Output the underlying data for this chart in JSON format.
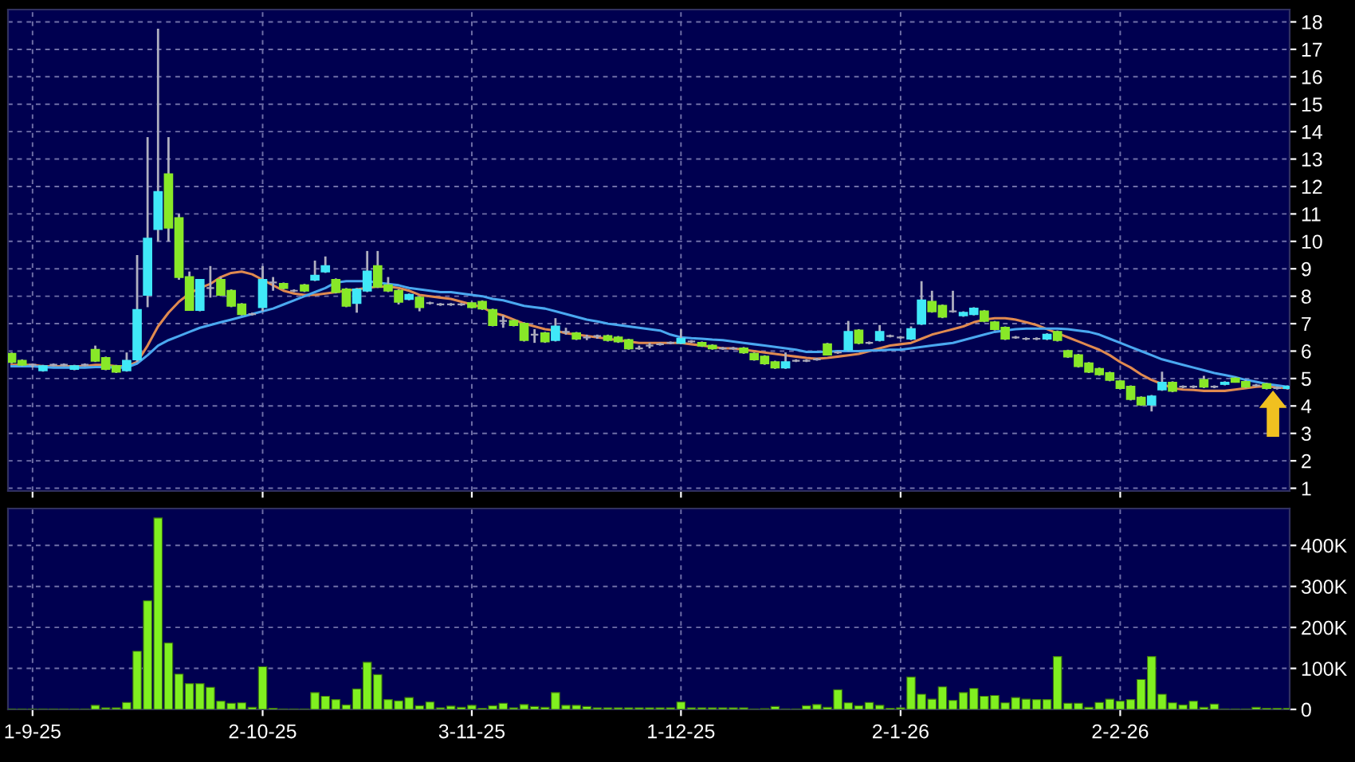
{
  "chart_data": [
    {
      "type": "candlestick",
      "ohlc": [
        [
          5.9,
          5.95,
          5.55,
          5.6
        ],
        [
          5.65,
          5.7,
          5.45,
          5.5
        ],
        [
          5.5,
          5.55,
          5.4,
          5.5
        ],
        [
          5.3,
          5.5,
          5.25,
          5.45
        ],
        [
          5.5,
          5.55,
          5.45,
          5.5
        ],
        [
          5.5,
          5.55,
          5.45,
          5.5
        ],
        [
          5.35,
          5.5,
          5.3,
          5.45
        ],
        [
          5.5,
          5.55,
          5.45,
          5.5
        ],
        [
          6.05,
          6.2,
          5.6,
          5.65
        ],
        [
          5.75,
          5.8,
          5.3,
          5.35
        ],
        [
          5.45,
          5.5,
          5.2,
          5.25
        ],
        [
          5.3,
          5.95,
          5.25,
          5.65
        ],
        [
          5.7,
          9.5,
          5.6,
          7.5
        ],
        [
          8.05,
          13.8,
          7.6,
          10.1
        ],
        [
          10.45,
          17.75,
          10.0,
          11.8
        ],
        [
          12.45,
          13.8,
          10.0,
          10.5
        ],
        [
          10.85,
          11.0,
          8.6,
          8.7
        ],
        [
          8.7,
          8.9,
          7.5,
          7.5
        ],
        [
          7.5,
          8.6,
          7.45,
          8.6
        ],
        [
          8.3,
          9.1,
          7.95,
          8.3
        ],
        [
          8.6,
          8.7,
          8.0,
          8.05
        ],
        [
          8.2,
          8.25,
          7.6,
          7.65
        ],
        [
          7.7,
          7.75,
          7.3,
          7.35
        ],
        [
          7.35,
          7.4,
          7.3,
          7.35
        ],
        [
          7.6,
          9.1,
          7.45,
          8.6
        ],
        [
          8.5,
          8.7,
          8.2,
          8.5
        ],
        [
          8.45,
          8.5,
          8.25,
          8.3
        ],
        [
          8.2,
          8.25,
          8.15,
          8.2
        ],
        [
          8.4,
          8.45,
          8.15,
          8.2
        ],
        [
          8.6,
          9.3,
          8.55,
          8.75
        ],
        [
          8.9,
          9.45,
          8.85,
          9.1
        ],
        [
          8.6,
          8.65,
          8.1,
          8.15
        ],
        [
          8.25,
          8.3,
          7.6,
          7.65
        ],
        [
          7.75,
          8.3,
          7.4,
          8.25
        ],
        [
          8.2,
          9.65,
          8.15,
          8.9
        ],
        [
          9.1,
          9.65,
          8.3,
          8.35
        ],
        [
          8.4,
          8.7,
          8.15,
          8.2
        ],
        [
          8.2,
          8.25,
          7.7,
          7.8
        ],
        [
          7.9,
          8.1,
          7.85,
          8.05
        ],
        [
          7.95,
          8.0,
          7.45,
          7.6
        ],
        [
          7.75,
          7.8,
          7.7,
          7.75
        ],
        [
          7.7,
          7.75,
          7.65,
          7.7
        ],
        [
          7.7,
          7.75,
          7.65,
          7.7
        ],
        [
          7.7,
          7.75,
          7.65,
          7.7
        ],
        [
          7.75,
          7.8,
          7.55,
          7.6
        ],
        [
          7.8,
          7.85,
          7.5,
          7.55
        ],
        [
          7.5,
          7.55,
          6.9,
          6.95
        ],
        [
          7.1,
          7.3,
          6.85,
          7.1
        ],
        [
          7.1,
          7.15,
          6.9,
          6.95
        ],
        [
          7.0,
          7.05,
          6.35,
          6.4
        ],
        [
          6.6,
          6.8,
          6.3,
          6.6
        ],
        [
          6.65,
          6.7,
          6.3,
          6.35
        ],
        [
          6.4,
          7.2,
          6.35,
          6.9
        ],
        [
          6.7,
          6.85,
          6.6,
          6.7
        ],
        [
          6.65,
          6.7,
          6.4,
          6.45
        ],
        [
          6.5,
          6.6,
          6.4,
          6.5
        ],
        [
          6.55,
          6.6,
          6.45,
          6.55
        ],
        [
          6.55,
          6.6,
          6.35,
          6.4
        ],
        [
          6.5,
          6.55,
          6.3,
          6.35
        ],
        [
          6.4,
          6.45,
          6.05,
          6.1
        ],
        [
          6.1,
          6.2,
          6.05,
          6.1
        ],
        [
          6.2,
          6.3,
          6.1,
          6.2
        ],
        [
          6.25,
          6.3,
          6.2,
          6.25
        ],
        [
          6.3,
          6.35,
          6.25,
          6.3
        ],
        [
          6.3,
          6.8,
          6.25,
          6.45
        ],
        [
          6.35,
          6.4,
          6.3,
          6.35
        ],
        [
          6.3,
          6.35,
          6.15,
          6.2
        ],
        [
          6.2,
          6.25,
          6.05,
          6.1
        ],
        [
          6.1,
          6.15,
          6.05,
          6.1
        ],
        [
          6.1,
          6.15,
          6.05,
          6.1
        ],
        [
          6.1,
          6.15,
          5.9,
          5.95
        ],
        [
          5.9,
          5.95,
          5.65,
          5.7
        ],
        [
          5.8,
          5.85,
          5.5,
          5.55
        ],
        [
          5.6,
          5.65,
          5.35,
          5.4
        ],
        [
          5.4,
          5.95,
          5.35,
          5.6
        ],
        [
          5.65,
          5.7,
          5.6,
          5.65
        ],
        [
          5.65,
          5.7,
          5.6,
          5.65
        ],
        [
          5.7,
          5.75,
          5.65,
          5.7
        ],
        [
          6.25,
          6.3,
          5.85,
          5.87
        ],
        [
          5.95,
          6.0,
          5.9,
          5.95
        ],
        [
          6.05,
          7.1,
          6.0,
          6.7
        ],
        [
          6.75,
          6.8,
          6.25,
          6.3
        ],
        [
          6.3,
          6.35,
          6.25,
          6.3
        ],
        [
          6.4,
          6.95,
          6.35,
          6.7
        ],
        [
          6.55,
          6.6,
          6.5,
          6.55
        ],
        [
          6.5,
          6.55,
          6.45,
          6.5
        ],
        [
          6.45,
          6.9,
          6.4,
          6.8
        ],
        [
          7.0,
          8.55,
          6.95,
          7.85
        ],
        [
          7.8,
          8.2,
          7.4,
          7.45
        ],
        [
          7.65,
          7.7,
          7.2,
          7.25
        ],
        [
          7.45,
          8.2,
          7.4,
          7.45
        ],
        [
          7.3,
          7.45,
          7.25,
          7.4
        ],
        [
          7.35,
          7.6,
          7.3,
          7.55
        ],
        [
          7.45,
          7.5,
          7.05,
          7.1
        ],
        [
          7.05,
          7.1,
          6.75,
          6.8
        ],
        [
          6.85,
          6.9,
          6.4,
          6.45
        ],
        [
          6.5,
          6.55,
          6.45,
          6.5
        ],
        [
          6.45,
          6.5,
          6.4,
          6.45
        ],
        [
          6.45,
          6.5,
          6.4,
          6.45
        ],
        [
          6.45,
          6.65,
          6.4,
          6.6
        ],
        [
          6.7,
          6.75,
          6.35,
          6.4
        ],
        [
          6.0,
          6.05,
          5.75,
          5.8
        ],
        [
          5.85,
          5.9,
          5.4,
          5.45
        ],
        [
          5.55,
          5.6,
          5.2,
          5.25
        ],
        [
          5.35,
          5.4,
          5.1,
          5.15
        ],
        [
          5.2,
          5.25,
          4.9,
          4.95
        ],
        [
          4.9,
          4.95,
          4.6,
          4.65
        ],
        [
          4.7,
          4.75,
          4.2,
          4.25
        ],
        [
          4.3,
          4.35,
          4.0,
          4.05
        ],
        [
          4.05,
          4.4,
          3.8,
          4.35
        ],
        [
          4.6,
          5.25,
          4.55,
          4.85
        ],
        [
          4.85,
          4.9,
          4.5,
          4.55
        ],
        [
          4.7,
          4.75,
          4.65,
          4.7
        ],
        [
          4.7,
          4.75,
          4.65,
          4.7
        ],
        [
          4.95,
          5.1,
          4.65,
          4.7
        ],
        [
          4.7,
          4.75,
          4.65,
          4.7
        ],
        [
          4.8,
          4.9,
          4.75,
          4.85
        ],
        [
          5.0,
          5.05,
          4.85,
          4.88
        ],
        [
          4.88,
          4.95,
          4.65,
          4.7
        ],
        [
          4.75,
          4.8,
          4.7,
          4.75
        ],
        [
          4.8,
          4.85,
          4.6,
          4.65
        ],
        [
          4.65,
          4.7,
          4.6,
          4.65
        ],
        [
          4.65,
          4.75,
          4.6,
          4.7
        ]
      ],
      "colors": [
        "#88e828",
        "#88e828",
        "#a8a8b8",
        "#40e8f8",
        "#a8a8b8",
        "#a8a8b8",
        "#40e8f8",
        "#a8a8b8",
        "#88e828",
        "#88e828",
        "#88e828",
        "#40e8f8",
        "#40e8f8",
        "#40e8f8",
        "#40e8f8",
        "#88e828",
        "#88e828",
        "#88e828",
        "#40e8f8",
        "#a8a8b8",
        "#88e828",
        "#88e828",
        "#88e828",
        "#a8a8b8",
        "#40e8f8",
        "#a8a8b8",
        "#88e828",
        "#a8a8b8",
        "#88e828",
        "#40e8f8",
        "#40e8f8",
        "#88e828",
        "#88e828",
        "#40e8f8",
        "#40e8f8",
        "#88e828",
        "#88e828",
        "#88e828",
        "#40e8f8",
        "#88e828",
        "#a8a8b8",
        "#a8a8b8",
        "#a8a8b8",
        "#a8a8b8",
        "#88e828",
        "#88e828",
        "#88e828",
        "#a8a8b8",
        "#88e828",
        "#88e828",
        "#a8a8b8",
        "#88e828",
        "#40e8f8",
        "#a8a8b8",
        "#88e828",
        "#a8a8b8",
        "#a8a8b8",
        "#88e828",
        "#88e828",
        "#88e828",
        "#a8a8b8",
        "#a8a8b8",
        "#a8a8b8",
        "#a8a8b8",
        "#40e8f8",
        "#a8a8b8",
        "#88e828",
        "#88e828",
        "#a8a8b8",
        "#a8a8b8",
        "#88e828",
        "#88e828",
        "#88e828",
        "#88e828",
        "#40e8f8",
        "#a8a8b8",
        "#a8a8b8",
        "#a8a8b8",
        "#88e828",
        "#a8a8b8",
        "#40e8f8",
        "#88e828",
        "#a8a8b8",
        "#40e8f8",
        "#a8a8b8",
        "#a8a8b8",
        "#40e8f8",
        "#40e8f8",
        "#88e828",
        "#88e828",
        "#a8a8b8",
        "#40e8f8",
        "#40e8f8",
        "#88e828",
        "#88e828",
        "#88e828",
        "#a8a8b8",
        "#a8a8b8",
        "#a8a8b8",
        "#40e8f8",
        "#88e828",
        "#88e828",
        "#88e828",
        "#88e828",
        "#88e828",
        "#88e828",
        "#88e828",
        "#88e828",
        "#88e828",
        "#40e8f8",
        "#40e8f8",
        "#88e828",
        "#a8a8b8",
        "#a8a8b8",
        "#88e828",
        "#a8a8b8",
        "#40e8f8",
        "#88e828",
        "#88e828",
        "#a8a8b8",
        "#88e828",
        "#a8a8b8",
        "#40e8f8"
      ],
      "series": [
        {
          "type": "line",
          "color": "#e08a50",
          "values": [
            5.5,
            5.5,
            5.5,
            5.45,
            5.45,
            5.45,
            5.45,
            5.45,
            5.5,
            5.5,
            5.45,
            5.45,
            5.6,
            6.2,
            6.9,
            7.4,
            7.8,
            8.1,
            8.3,
            8.45,
            8.7,
            8.85,
            8.9,
            8.8,
            8.6,
            8.4,
            8.2,
            8.1,
            8.05,
            8.05,
            8.1,
            8.15,
            8.2,
            8.25,
            8.3,
            8.35,
            8.35,
            8.3,
            8.2,
            8.05,
            8.0,
            7.95,
            7.9,
            7.8,
            7.7,
            7.6,
            7.4,
            7.3,
            7.15,
            7.0,
            6.9,
            6.8,
            6.75,
            6.65,
            6.6,
            6.55,
            6.5,
            6.45,
            6.4,
            6.35,
            6.3,
            6.3,
            6.3,
            6.3,
            6.3,
            6.25,
            6.2,
            6.15,
            6.1,
            6.1,
            6.05,
            6.0,
            5.95,
            5.9,
            5.85,
            5.8,
            5.75,
            5.72,
            5.75,
            5.8,
            5.85,
            5.9,
            6.0,
            6.1,
            6.2,
            6.25,
            6.3,
            6.45,
            6.6,
            6.7,
            6.8,
            6.9,
            7.05,
            7.15,
            7.2,
            7.2,
            7.15,
            7.05,
            6.95,
            6.8,
            6.65,
            6.5,
            6.35,
            6.2,
            6.05,
            5.85,
            5.6,
            5.4,
            5.15,
            4.95,
            4.8,
            4.65,
            4.6,
            4.58,
            4.55,
            4.55,
            4.55,
            4.6,
            4.65,
            4.7,
            4.72,
            4.68,
            4.65
          ]
        },
        {
          "type": "line",
          "color": "#4aa8f0",
          "values": [
            5.45,
            5.45,
            5.45,
            5.42,
            5.4,
            5.4,
            5.4,
            5.4,
            5.42,
            5.42,
            5.4,
            5.4,
            5.55,
            5.85,
            6.2,
            6.4,
            6.55,
            6.7,
            6.85,
            6.95,
            7.05,
            7.15,
            7.25,
            7.35,
            7.45,
            7.55,
            7.7,
            7.85,
            8.0,
            8.15,
            8.3,
            8.5,
            8.55,
            8.55,
            8.55,
            8.5,
            8.45,
            8.4,
            8.3,
            8.25,
            8.2,
            8.15,
            8.15,
            8.1,
            8.05,
            8.0,
            7.9,
            7.85,
            7.75,
            7.65,
            7.6,
            7.55,
            7.45,
            7.35,
            7.25,
            7.15,
            7.08,
            7.0,
            6.95,
            6.9,
            6.85,
            6.8,
            6.75,
            6.6,
            6.5,
            6.47,
            6.45,
            6.42,
            6.4,
            6.35,
            6.3,
            6.25,
            6.2,
            6.15,
            6.1,
            6.05,
            5.97,
            5.97,
            5.98,
            6.0,
            6.0,
            6.0,
            6.02,
            6.03,
            6.05,
            6.05,
            6.1,
            6.15,
            6.2,
            6.25,
            6.3,
            6.4,
            6.5,
            6.6,
            6.7,
            6.75,
            6.8,
            6.82,
            6.82,
            6.82,
            6.82,
            6.8,
            6.75,
            6.7,
            6.6,
            6.45,
            6.3,
            6.15,
            6.0,
            5.85,
            5.7,
            5.6,
            5.5,
            5.4,
            5.3,
            5.2,
            5.13,
            5.05,
            4.95,
            4.88,
            4.8,
            4.75,
            4.7
          ]
        }
      ],
      "ylim": [
        0.9,
        18.45
      ],
      "yticks": [
        1,
        2,
        3,
        4,
        5,
        6,
        7,
        8,
        9,
        10,
        11,
        12,
        13,
        14,
        15,
        16,
        17,
        18
      ],
      "grid": true,
      "tick_labels": "y"
    },
    {
      "type": "bar",
      "categories": [
        null,
        null,
        "1-9-25",
        null,
        null,
        null,
        null,
        null,
        null,
        null,
        null,
        null,
        null,
        null,
        null,
        null,
        null,
        null,
        null,
        null,
        null,
        null,
        null,
        null,
        "2-10-25",
        null,
        null,
        null,
        null,
        null,
        null,
        null,
        null,
        null,
        null,
        null,
        null,
        null,
        null,
        null,
        null,
        null,
        null,
        null,
        "3-11-25",
        null,
        null,
        null,
        null,
        null,
        null,
        null,
        null,
        null,
        null,
        null,
        null,
        null,
        null,
        null,
        null,
        null,
        null,
        null,
        "1-12-25",
        null,
        null,
        null,
        null,
        null,
        null,
        null,
        null,
        null,
        null,
        null,
        null,
        null,
        null,
        null,
        null,
        null,
        null,
        null,
        null,
        "2-1-26",
        null,
        null,
        null,
        null,
        null,
        null,
        null,
        null,
        null,
        null,
        null,
        null,
        null,
        null,
        null,
        null,
        null,
        null,
        null,
        null,
        "2-2-26",
        null,
        null,
        null,
        null,
        null,
        null,
        null,
        null,
        null,
        null,
        null,
        null,
        null,
        null,
        null,
        null
      ],
      "values": [
        1000,
        1000,
        1000,
        1000,
        1000,
        1000,
        1000,
        1000,
        10000,
        4000,
        4000,
        17000,
        142000,
        265000,
        467000,
        162000,
        86000,
        63000,
        63000,
        54000,
        20000,
        15000,
        16000,
        5000,
        104000,
        3000,
        1000,
        1000,
        1000,
        41000,
        32000,
        24000,
        11000,
        50000,
        115000,
        85000,
        24000,
        21000,
        29000,
        9000,
        18000,
        4000,
        8000,
        5000,
        10000,
        3000,
        9000,
        15000,
        4000,
        12000,
        7000,
        5000,
        41000,
        10000,
        10000,
        7000,
        4000,
        4000,
        4000,
        4000,
        4000,
        4000,
        4000,
        4000,
        18000,
        4000,
        4000,
        4000,
        4000,
        4000,
        4000,
        1000,
        2000,
        7000,
        1000,
        1000,
        9000,
        12000,
        5000,
        48000,
        16000,
        9000,
        17000,
        10000,
        3000,
        4000,
        79000,
        37000,
        25000,
        55000,
        22000,
        41000,
        51000,
        32000,
        34000,
        16000,
        29000,
        25000,
        24000,
        24000,
        129000,
        15000,
        15000,
        5000,
        17000,
        25000,
        20000,
        24000,
        73000,
        129000,
        37000,
        16000,
        11000,
        20000,
        5000,
        13000,
        1000,
        1000,
        1000,
        5000,
        3000,
        3000,
        3000
      ],
      "color": "#80f020",
      "ylim": [
        0,
        490000
      ],
      "yticks": [
        0,
        {
          "value": 100000,
          "label": "100K"
        },
        {
          "value": 200000,
          "label": "200K"
        },
        {
          "value": 300000,
          "label": "300K"
        },
        {
          "value": 400000,
          "label": "400K"
        }
      ],
      "grid": true
    }
  ]
}
